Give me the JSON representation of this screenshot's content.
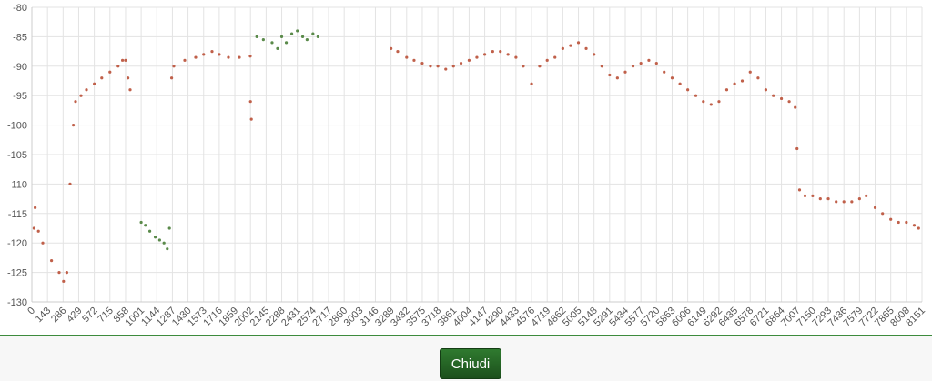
{
  "chart_data": {
    "type": "scatter",
    "xlim": [
      0,
      8151
    ],
    "xticks": [
      0,
      143,
      286,
      429,
      572,
      715,
      858,
      1001,
      1144,
      1287,
      1430,
      1573,
      1716,
      1859,
      2002,
      2145,
      2288,
      2431,
      2574,
      2717,
      2860,
      3003,
      3146,
      3289,
      3432,
      3575,
      3718,
      3861,
      4004,
      4147,
      4290,
      4433,
      4576,
      4719,
      4862,
      5005,
      5148,
      5291,
      5434,
      5577,
      5720,
      5863,
      6006,
      6149,
      6292,
      6435,
      6578,
      6721,
      6864,
      7007,
      7150,
      7293,
      7436,
      7579,
      7722,
      7865,
      8008,
      8151
    ],
    "ylim": [
      -130,
      -80
    ],
    "yticks": [
      -130,
      -125,
      -120,
      -115,
      -110,
      -105,
      -100,
      -95,
      -90,
      -85,
      -80
    ],
    "grid": true,
    "series": [
      {
        "color": "#c0604a",
        "x": [
          20,
          30,
          60,
          100,
          180,
          250,
          290,
          320,
          350,
          380,
          400,
          450,
          500,
          572,
          640,
          715,
          790,
          830,
          858,
          880,
          900,
          1280,
          1300,
          1400,
          1500,
          1573,
          1650,
          1716,
          1800,
          1900,
          2000,
          2002,
          2010,
          3289,
          3350,
          3432,
          3500,
          3575,
          3650,
          3718,
          3790,
          3861,
          3930,
          4004,
          4075,
          4147,
          4220,
          4290,
          4360,
          4433,
          4500,
          4576,
          4650,
          4719,
          4790,
          4862,
          4933,
          5005,
          5076,
          5148,
          5220,
          5291,
          5362,
          5434,
          5505,
          5577,
          5650,
          5720,
          5790,
          5863,
          5935,
          6006,
          6080,
          6149,
          6220,
          6292,
          6363,
          6435,
          6505,
          6578,
          6650,
          6721,
          6790,
          6864,
          6935,
          6990,
          7007,
          7030,
          7080,
          7150,
          7220,
          7293,
          7365,
          7436,
          7508,
          7579,
          7640,
          7722,
          7790,
          7865,
          7936,
          8008,
          8080,
          8120
        ],
        "values": [
          -117.5,
          -114,
          -118,
          -120,
          -123,
          -125,
          -126.5,
          -125,
          -110,
          -100,
          -96,
          -95,
          -94,
          -93,
          -92,
          -91,
          -90,
          -89,
          -89,
          -92,
          -94,
          -92,
          -90,
          -89,
          -88.5,
          -88,
          -87.5,
          -88,
          -88.5,
          -88.5,
          -88.3,
          -96,
          -99,
          -87,
          -87.5,
          -88.5,
          -89,
          -89.5,
          -90,
          -90,
          -90.5,
          -90,
          -89.5,
          -89,
          -88.5,
          -88,
          -87.5,
          -87.5,
          -88,
          -88.5,
          -90,
          -93,
          -90,
          -89,
          -88.5,
          -87,
          -86.5,
          -86,
          -87,
          -88,
          -90,
          -91.5,
          -92,
          -91,
          -90,
          -89.5,
          -89,
          -89.5,
          -91,
          -92,
          -93,
          -94,
          -95,
          -96,
          -96.5,
          -96,
          -94,
          -93,
          -92.5,
          -91,
          -92,
          -94,
          -95,
          -95.5,
          -96,
          -97,
          -104,
          -111,
          -112,
          -112,
          -112.5,
          -112.5,
          -113,
          -113,
          -113,
          -112.5,
          -112,
          -114,
          -115,
          -116,
          -116.5,
          -116.5,
          -117,
          -117.5
        ]
      },
      {
        "color": "#5a8a4a",
        "x": [
          1001,
          1040,
          1080,
          1130,
          1170,
          1210,
          1240,
          1260,
          2060,
          2120,
          2200,
          2250,
          2288,
          2330,
          2380,
          2431,
          2480,
          2520,
          2574,
          2620
        ],
        "values": [
          -116.5,
          -117,
          -118,
          -119,
          -119.5,
          -120,
          -121,
          -117.5,
          -85,
          -85.5,
          -86,
          -87,
          -85,
          -86,
          -84.5,
          -84,
          -85,
          -85.5,
          -84.5,
          -85
        ]
      }
    ]
  },
  "button": {
    "label": "Chiudi"
  }
}
